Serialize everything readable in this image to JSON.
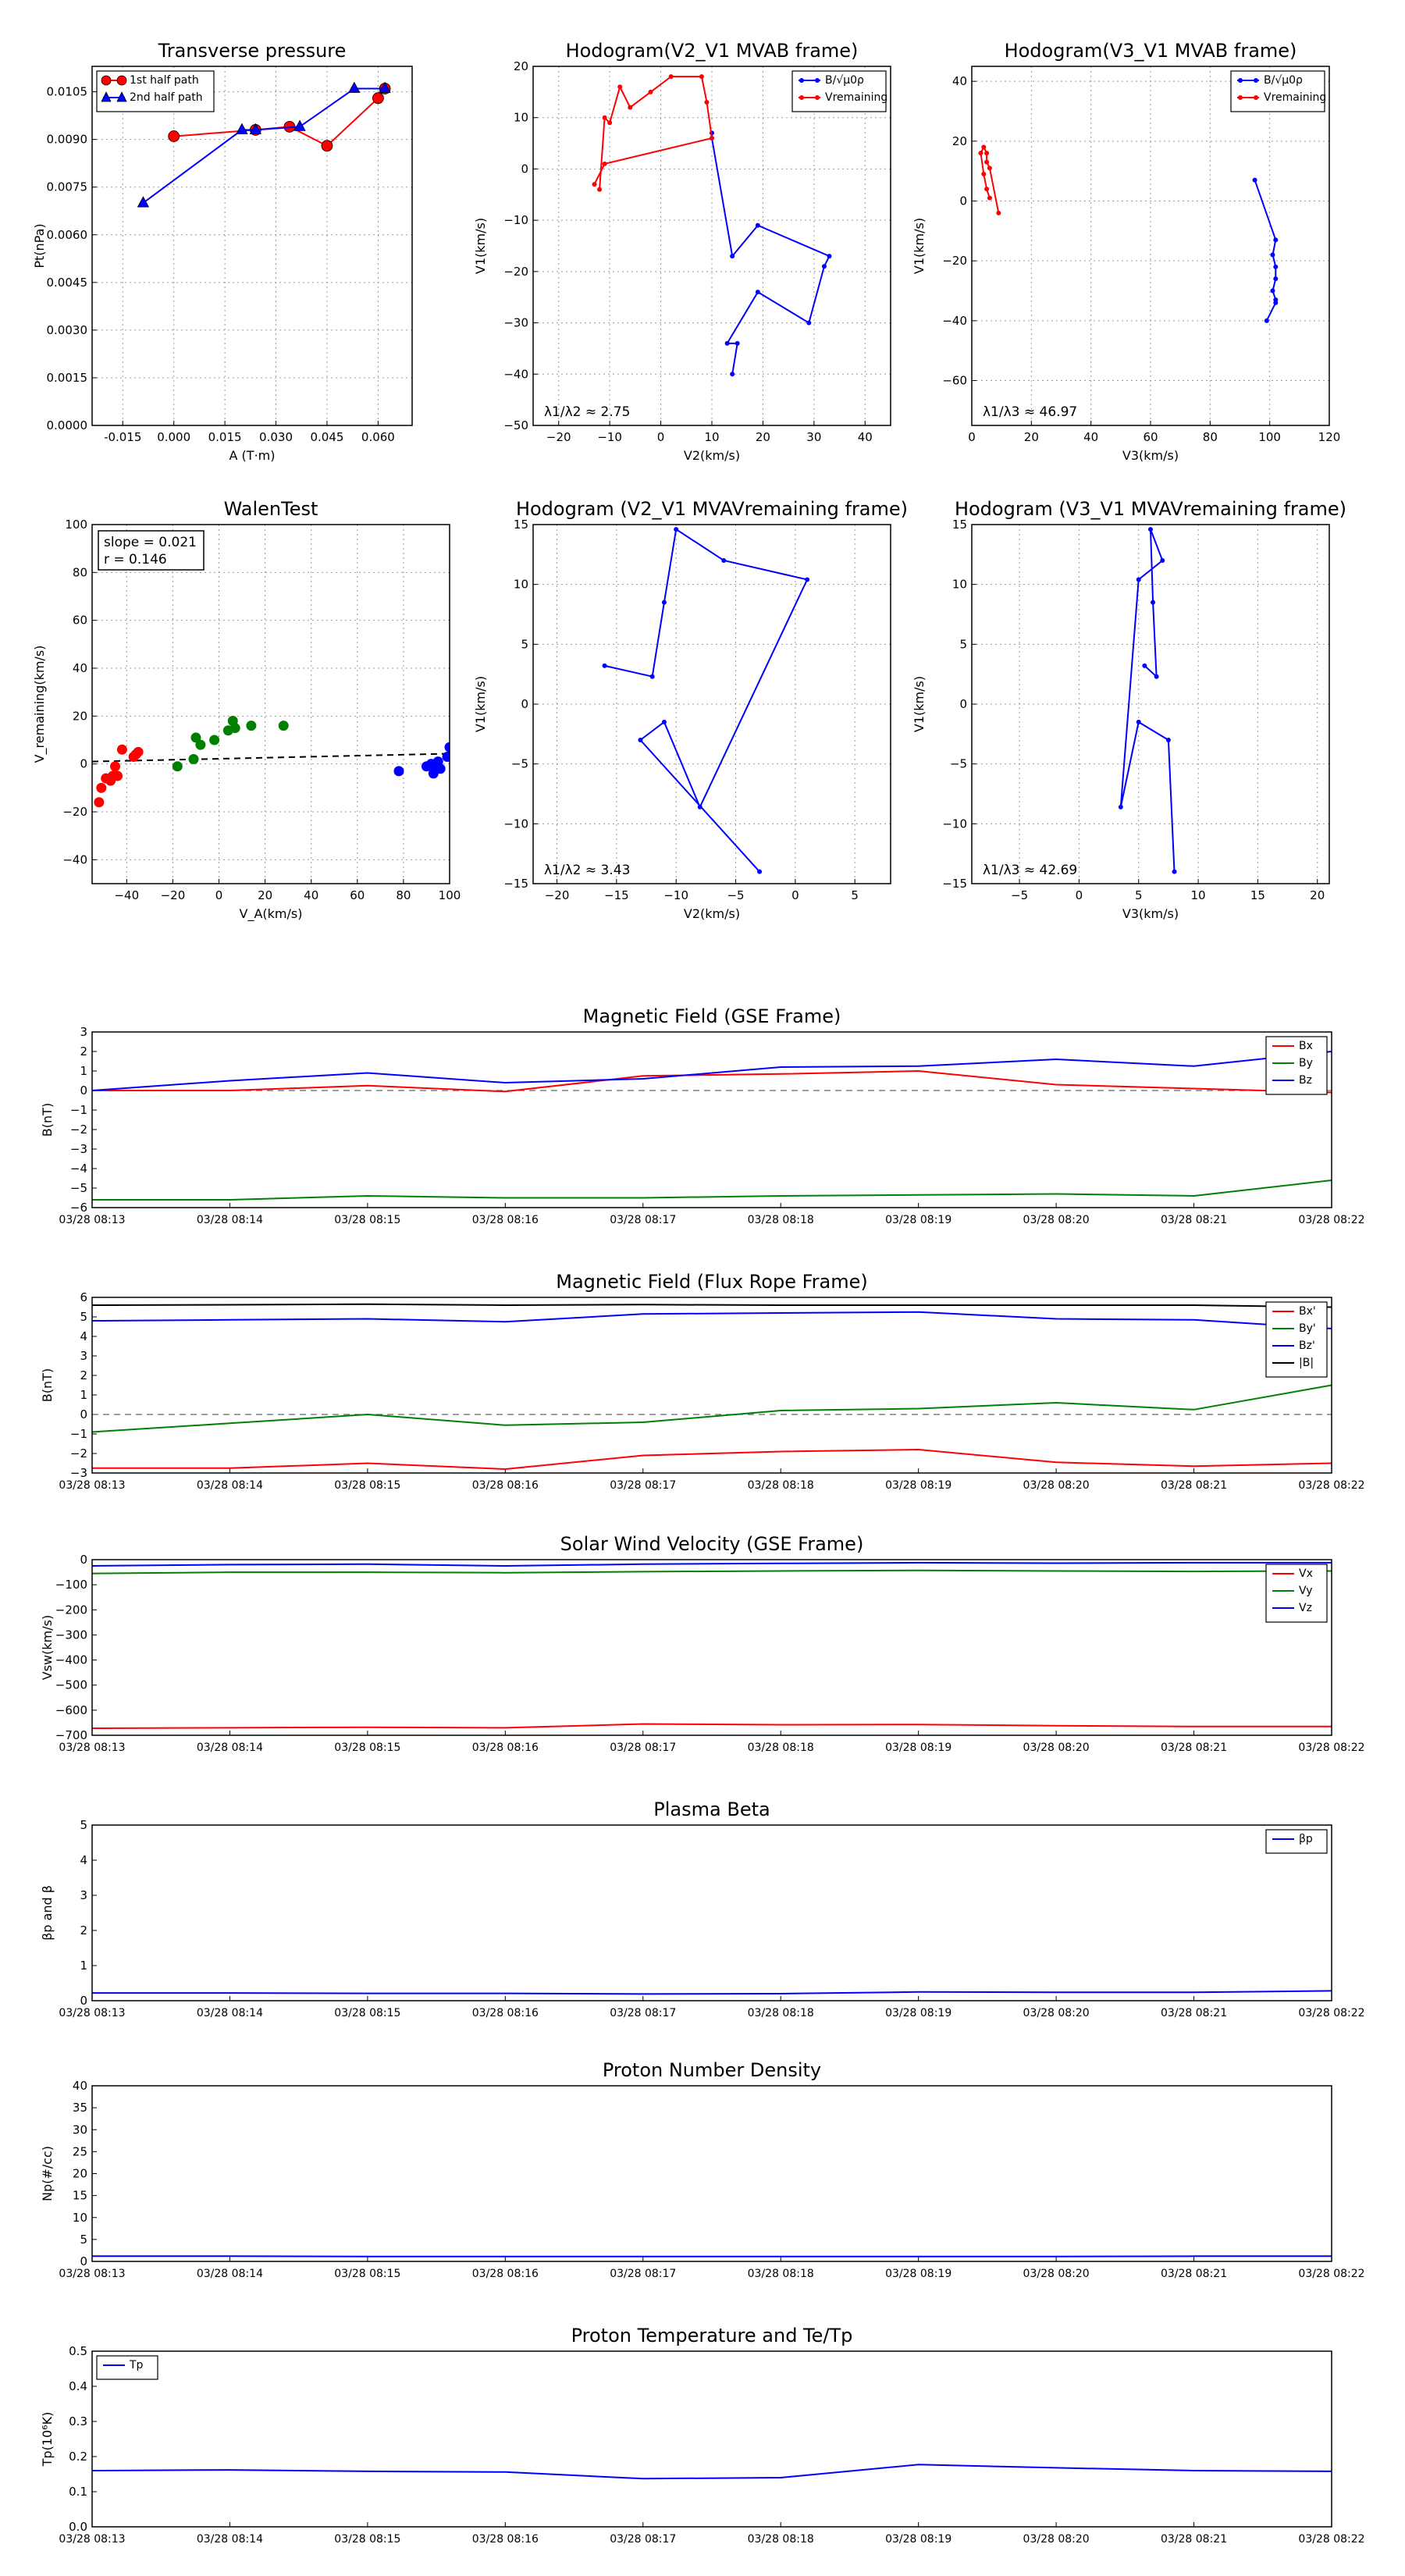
{
  "chart_data": [
    {
      "id": "transverse-pressure",
      "type": "scatter",
      "title": "Transverse pressure",
      "xlabel": "A (T·m)",
      "ylabel": "Pt(nPa)",
      "xlim": [
        -0.024,
        0.07
      ],
      "ylim": [
        0,
        0.0113
      ],
      "xticks": [
        "-0.015",
        "0.000",
        "0.015",
        "0.030",
        "0.045",
        "0.060"
      ],
      "yticks": [
        "0.0000",
        "0.0015",
        "0.0030",
        "0.0045",
        "0.0060",
        "0.0075",
        "0.0090",
        "0.0105"
      ],
      "grid": true,
      "legend": "top-left",
      "series": [
        {
          "name": "1st half path",
          "color": "#ff0000",
          "marker": "circle",
          "x": [
            0.0,
            0.024,
            0.034,
            0.045,
            0.06,
            0.062
          ],
          "y": [
            0.0091,
            0.0093,
            0.0094,
            0.0088,
            0.0103,
            0.0106
          ]
        },
        {
          "name": "2nd half path",
          "color": "#0000ff",
          "marker": "triangle",
          "x": [
            0.062,
            0.053,
            0.037,
            0.024,
            0.02,
            -0.009
          ],
          "y": [
            0.0106,
            0.0106,
            0.0094,
            0.0093,
            0.0093,
            0.007
          ]
        }
      ]
    },
    {
      "id": "hodogram-v2v1-mvab",
      "type": "line",
      "title": "Hodogram(V2_V1 MVAB frame)",
      "xlabel": "V2(km/s)",
      "ylabel": "V1(km/s)",
      "xlim": [
        -25,
        45
      ],
      "ylim": [
        -50,
        20
      ],
      "xticks": [
        "−20",
        "−10",
        "0",
        "10",
        "20",
        "30",
        "40"
      ],
      "yticks": [
        "−50",
        "−40",
        "−30",
        "−20",
        "−10",
        "0",
        "10",
        "20"
      ],
      "annotation": "λ1/λ2 ≈ 2.75",
      "grid": true,
      "legend": "top-right",
      "series": [
        {
          "name": "B/√μ0ρ",
          "color": "#0000ff",
          "x": [
            10,
            10,
            14,
            19,
            33,
            32,
            29,
            19,
            13,
            15,
            14
          ],
          "y": [
            7,
            6,
            -17,
            -11,
            -17,
            -19,
            -30,
            -24,
            -34,
            -34,
            -40
          ]
        },
        {
          "name": "Vremaining",
          "color": "#ff0000",
          "x": [
            -12,
            -11,
            -10,
            -8,
            -6,
            -2,
            2,
            8,
            9,
            10,
            -11,
            -13
          ],
          "y": [
            -4,
            10,
            9,
            16,
            12,
            15,
            18,
            18,
            13,
            6,
            1,
            -3
          ]
        }
      ]
    },
    {
      "id": "hodogram-v3v1-mvab",
      "type": "line",
      "title": "Hodogram(V3_V1 MVAB frame)",
      "xlabel": "V3(km/s)",
      "ylabel": "V1(km/s)",
      "xlim": [
        0,
        120
      ],
      "ylim": [
        -75,
        45
      ],
      "xticks": [
        "0",
        "20",
        "40",
        "60",
        "80",
        "100",
        "120"
      ],
      "yticks": [
        "−60",
        "−40",
        "−20",
        "0",
        "20",
        "40"
      ],
      "annotation": "λ1/λ3 ≈ 46.97",
      "grid": true,
      "legend": "top-right",
      "series": [
        {
          "name": "B/√μ0ρ",
          "color": "#0000ff",
          "x": [
            95,
            102,
            101,
            102,
            102,
            101,
            102,
            102,
            99
          ],
          "y": [
            7,
            -13,
            -18,
            -22,
            -26,
            -30,
            -33,
            -34,
            -40
          ]
        },
        {
          "name": "Vremaining",
          "color": "#ff0000",
          "x": [
            9,
            6,
            5,
            5,
            4,
            3,
            4,
            5,
            6
          ],
          "y": [
            -4,
            11,
            13,
            16,
            18,
            16,
            9,
            4,
            1
          ]
        }
      ]
    },
    {
      "id": "walen-test",
      "type": "scatter",
      "title": "WalenTest",
      "xlabel": "V_A(km/s)",
      "ylabel": "V_remaining(km/s)",
      "xlim": [
        -55,
        100
      ],
      "ylim": [
        -50,
        100
      ],
      "xticks": [
        "−40",
        "−20",
        "0",
        "20",
        "40",
        "60",
        "80",
        "100"
      ],
      "yticks": [
        "−40",
        "−20",
        "0",
        "20",
        "40",
        "60",
        "80",
        "100"
      ],
      "annotation": [
        "slope = 0.021",
        "r = 0.146"
      ],
      "grid": true,
      "fit_line": {
        "x": [
          -55,
          100
        ],
        "y": [
          1.0,
          4.3
        ]
      },
      "series": [
        {
          "name": "",
          "color": "#ff0000",
          "x": [
            -52,
            -49,
            -47,
            -46,
            -44,
            -45,
            -42,
            -37,
            -36,
            -35,
            -51
          ],
          "y": [
            -16,
            -6,
            -7,
            -5,
            -5,
            -1,
            6,
            3,
            4,
            5,
            -10
          ]
        },
        {
          "name": "",
          "color": "#008000",
          "x": [
            -18,
            -11,
            -10,
            -8,
            -2,
            4,
            6,
            7,
            14,
            28
          ],
          "y": [
            -1,
            2,
            11,
            8,
            10,
            14,
            18,
            15,
            16,
            16
          ]
        },
        {
          "name": "",
          "color": "#0000ff",
          "x": [
            78,
            90,
            92,
            93,
            94,
            95,
            96,
            99,
            100
          ],
          "y": [
            -3,
            -1,
            0,
            -4,
            -2,
            1,
            -2,
            3,
            7
          ]
        }
      ]
    },
    {
      "id": "hodogram-v2v1-mvav",
      "type": "line",
      "title": "Hodogram (V2_V1 MVAVremaining frame)",
      "xlabel": "V2(km/s)",
      "ylabel": "V1(km/s)",
      "xlim": [
        -22,
        8
      ],
      "ylim": [
        -15,
        15
      ],
      "xticks": [
        "−20",
        "−15",
        "−10",
        "−5",
        "0",
        "5"
      ],
      "yticks": [
        "−15",
        "−10",
        "−5",
        "0",
        "5",
        "10",
        "15"
      ],
      "annotation": "λ1/λ2 ≈ 3.43",
      "grid": true,
      "series": [
        {
          "name": "",
          "color": "#0000ff",
          "x": [
            -16,
            -12,
            -11,
            -10,
            -6,
            1,
            -8,
            -11,
            -13,
            -3
          ],
          "y": [
            3.2,
            2.3,
            8.5,
            14.6,
            12,
            10.4,
            -8.6,
            -1.5,
            -3,
            -14
          ]
        }
      ]
    },
    {
      "id": "hodogram-v3v1-mvav",
      "type": "line",
      "title": "Hodogram (V3_V1 MVAVremaining frame)",
      "xlabel": "V3(km/s)",
      "ylabel": "V1(km/s)",
      "xlim": [
        -9,
        21
      ],
      "ylim": [
        -15,
        15
      ],
      "xticks": [
        "−5",
        "0",
        "5",
        "10",
        "15",
        "20"
      ],
      "yticks": [
        "−15",
        "−10",
        "−5",
        "0",
        "5",
        "10",
        "15"
      ],
      "annotation": "λ1/λ3 ≈ 42.69",
      "grid": true,
      "series": [
        {
          "name": "",
          "color": "#0000ff",
          "x": [
            5.5,
            6.5,
            6.2,
            6,
            7,
            5,
            3.5,
            5,
            7.5,
            8
          ],
          "y": [
            3.2,
            2.3,
            8.5,
            14.6,
            12,
            10.4,
            -8.6,
            -1.5,
            -3,
            -14
          ]
        }
      ]
    },
    {
      "id": "magnetic-field-gse",
      "type": "line",
      "title": "Magnetic Field (GSE Frame)",
      "ylabel": "B(nT)",
      "categories": [
        "03/28 08:13",
        "03/28 08:14",
        "03/28 08:15",
        "03/28 08:16",
        "03/28 08:17",
        "03/28 08:18",
        "03/28 08:19",
        "03/28 08:20",
        "03/28 08:21",
        "03/28 08:22"
      ],
      "ylim": [
        -6,
        3
      ],
      "yticks": [
        "−6",
        "−5",
        "−4",
        "−3",
        "−2",
        "−1",
        "0",
        "1",
        "2",
        "3"
      ],
      "zero_line": true,
      "legend": "top-right",
      "series": [
        {
          "name": "Bx",
          "color": "#ff0000",
          "values": [
            0.0,
            0.0,
            0.25,
            -0.05,
            0.75,
            0.85,
            1.0,
            0.3,
            0.1,
            -0.1
          ]
        },
        {
          "name": "By",
          "color": "#008000",
          "values": [
            -5.6,
            -5.6,
            -5.4,
            -5.5,
            -5.5,
            -5.4,
            -5.35,
            -5.3,
            -5.4,
            -4.6
          ]
        },
        {
          "name": "Bz",
          "color": "#0000ff",
          "values": [
            0.0,
            0.5,
            0.9,
            0.4,
            0.6,
            1.2,
            1.25,
            1.6,
            1.25,
            2.0
          ]
        }
      ]
    },
    {
      "id": "magnetic-field-flux-rope",
      "type": "line",
      "title": "Magnetic Field (Flux Rope Frame)",
      "ylabel": "B(nT)",
      "categories": [
        "03/28 08:13",
        "03/28 08:14",
        "03/28 08:15",
        "03/28 08:16",
        "03/28 08:17",
        "03/28 08:18",
        "03/28 08:19",
        "03/28 08:20",
        "03/28 08:21",
        "03/28 08:22"
      ],
      "ylim": [
        -3,
        6
      ],
      "yticks": [
        "−3",
        "−2",
        "−1",
        "0",
        "1",
        "2",
        "3",
        "4",
        "5",
        "6"
      ],
      "zero_line": true,
      "legend": "top-right",
      "series": [
        {
          "name": "Bx'",
          "color": "#ff0000",
          "values": [
            -2.75,
            -2.75,
            -2.5,
            -2.8,
            -2.1,
            -1.9,
            -1.8,
            -2.45,
            -2.65,
            -2.5
          ]
        },
        {
          "name": "By'",
          "color": "#008000",
          "values": [
            -0.9,
            -0.45,
            0.0,
            -0.55,
            -0.4,
            0.2,
            0.3,
            0.6,
            0.25,
            1.5
          ]
        },
        {
          "name": "Bz'",
          "color": "#0000ff",
          "values": [
            4.8,
            4.85,
            4.9,
            4.75,
            5.15,
            5.2,
            5.25,
            4.9,
            4.85,
            4.4
          ]
        },
        {
          "name": "|B|",
          "color": "#000000",
          "values": [
            5.6,
            5.62,
            5.65,
            5.6,
            5.63,
            5.6,
            5.6,
            5.6,
            5.6,
            5.5
          ]
        }
      ]
    },
    {
      "id": "solar-wind-velocity",
      "type": "line",
      "title": "Solar Wind Velocity (GSE Frame)",
      "ylabel": "Vsw(km/s)",
      "categories": [
        "03/28 08:13",
        "03/28 08:14",
        "03/28 08:15",
        "03/28 08:16",
        "03/28 08:17",
        "03/28 08:18",
        "03/28 08:19",
        "03/28 08:20",
        "03/28 08:21",
        "03/28 08:22"
      ],
      "ylim": [
        -700,
        0
      ],
      "yticks": [
        "−700",
        "−600",
        "−500",
        "−400",
        "−300",
        "−200",
        "−100",
        "0"
      ],
      "legend": "top-right",
      "series": [
        {
          "name": "Vx",
          "color": "#ff0000",
          "values": [
            -672,
            -670,
            -668,
            -670,
            -655,
            -658,
            -657,
            -662,
            -665,
            -665
          ]
        },
        {
          "name": "Vy",
          "color": "#008000",
          "values": [
            -55,
            -50,
            -50,
            -52,
            -48,
            -45,
            -43,
            -45,
            -47,
            -45
          ]
        },
        {
          "name": "Vz",
          "color": "#0000ff",
          "values": [
            -25,
            -20,
            -18,
            -25,
            -18,
            -15,
            -12,
            -14,
            -12,
            -12
          ]
        }
      ]
    },
    {
      "id": "plasma-beta",
      "type": "line",
      "title": "Plasma Beta",
      "ylabel": "βp and β",
      "categories": [
        "03/28 08:13",
        "03/28 08:14",
        "03/28 08:15",
        "03/28 08:16",
        "03/28 08:17",
        "03/28 08:18",
        "03/28 08:19",
        "03/28 08:20",
        "03/28 08:21",
        "03/28 08:22"
      ],
      "ylim": [
        0,
        5
      ],
      "yticks": [
        "0",
        "1",
        "2",
        "3",
        "4",
        "5"
      ],
      "legend": "top-right",
      "series": [
        {
          "name": "βp",
          "color": "#0000ff",
          "values": [
            0.22,
            0.22,
            0.21,
            0.21,
            0.19,
            0.2,
            0.25,
            0.24,
            0.24,
            0.28
          ]
        }
      ]
    },
    {
      "id": "proton-number-density",
      "type": "line",
      "title": "Proton Number Density",
      "ylabel": "Np(#/cc)",
      "categories": [
        "03/28 08:13",
        "03/28 08:14",
        "03/28 08:15",
        "03/28 08:16",
        "03/28 08:17",
        "03/28 08:18",
        "03/28 08:19",
        "03/28 08:20",
        "03/28 08:21",
        "03/28 08:22"
      ],
      "ylim": [
        0,
        40
      ],
      "yticks": [
        "0",
        "5",
        "10",
        "15",
        "20",
        "25",
        "30",
        "35",
        "40"
      ],
      "series": [
        {
          "name": "",
          "color": "#0000ff",
          "values": [
            1.2,
            1.2,
            1.1,
            1.1,
            1.1,
            1.1,
            1.1,
            1.1,
            1.2,
            1.2
          ]
        }
      ]
    },
    {
      "id": "proton-temperature",
      "type": "line",
      "title": "Proton Temperature and Te/Tp",
      "ylabel": "Tp(10⁶K)",
      "categories": [
        "03/28 08:13",
        "03/28 08:14",
        "03/28 08:15",
        "03/28 08:16",
        "03/28 08:17",
        "03/28 08:18",
        "03/28 08:19",
        "03/28 08:20",
        "03/28 08:21",
        "03/28 08:22"
      ],
      "ylim": [
        0,
        0.5
      ],
      "yticks": [
        "0.0",
        "0.1",
        "0.2",
        "0.3",
        "0.4",
        "0.5"
      ],
      "legend": "top-left",
      "series": [
        {
          "name": "Tp",
          "color": "#0000ff",
          "values": [
            0.16,
            0.162,
            0.158,
            0.156,
            0.137,
            0.14,
            0.177,
            0.168,
            0.16,
            0.158
          ]
        }
      ]
    }
  ]
}
